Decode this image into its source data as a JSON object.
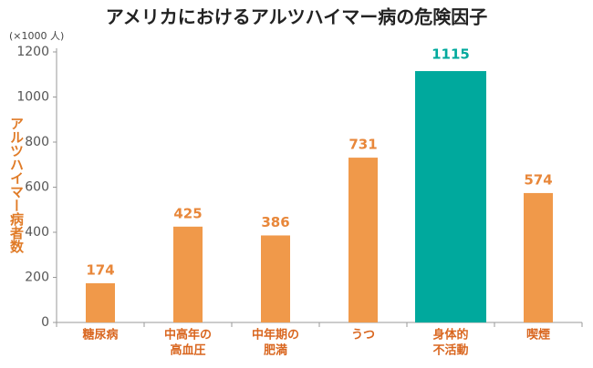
{
  "chart_data": {
    "type": "bar",
    "title": "アメリカにおけるアルツハイマー病の危険因子",
    "unit_label": "(×1000 人)",
    "y_label": "アルツハイマー病者数",
    "categories": [
      [
        "糖尿病"
      ],
      [
        "中高年の",
        "高血圧"
      ],
      [
        "中年期の",
        "肥満"
      ],
      [
        "うつ"
      ],
      [
        "身体的",
        "不活動"
      ],
      [
        "喫煙"
      ]
    ],
    "values": [
      174,
      425,
      386,
      731,
      1115,
      574
    ],
    "color": "#f0994a",
    "highlight": 4,
    "highlight_color": "#00a99d",
    "ylim": [
      0,
      1200
    ],
    "yticks": [
      0,
      200,
      400,
      600,
      800,
      1000,
      1200
    ]
  }
}
